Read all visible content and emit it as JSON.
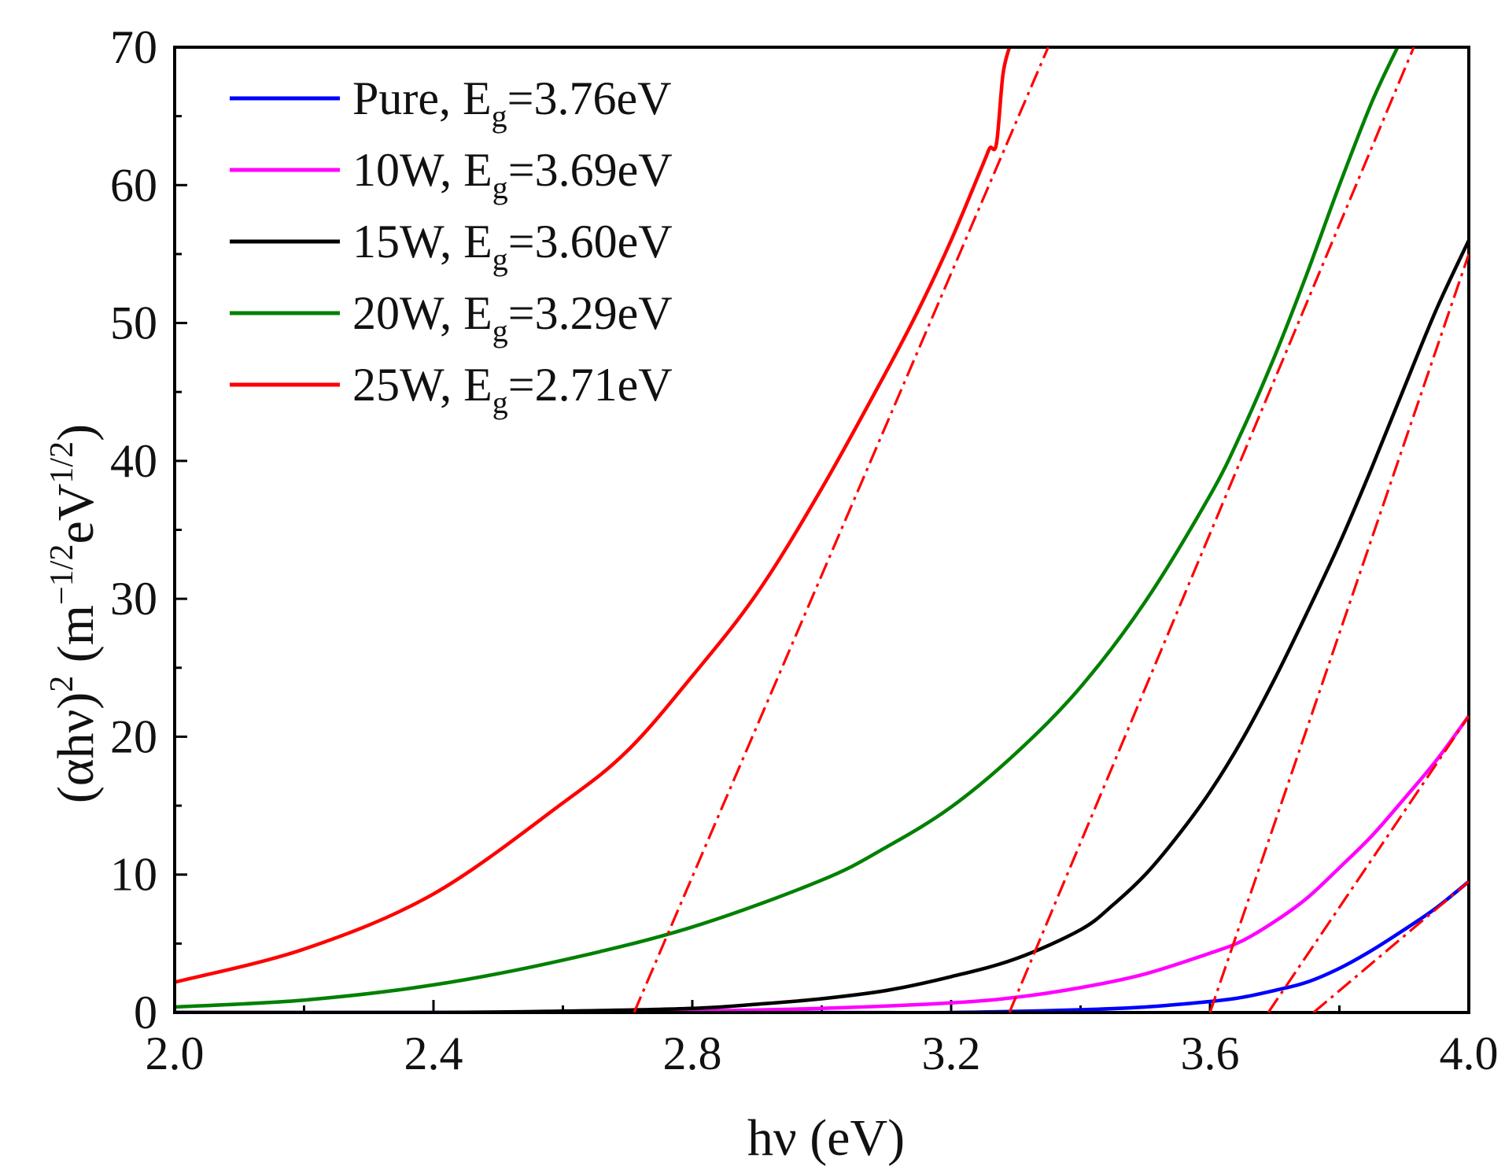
{
  "chart_data": {
    "type": "line",
    "xlabel": "hν (eV)",
    "ylabel": {
      "base": "(αhν)",
      "power": "2",
      "unit_open": " (m",
      "unit_power1": "−1/2",
      "unit_mid": "eV",
      "unit_power2": "1/2",
      "unit_close": ")"
    },
    "xlim": [
      2.0,
      4.0
    ],
    "ylim": [
      0,
      70
    ],
    "xticks": [
      "2.0",
      "2.4",
      "2.8",
      "3.2",
      "3.6",
      "4.0"
    ],
    "yticks": [
      "0",
      "10",
      "20",
      "30",
      "40",
      "50",
      "60",
      "70"
    ],
    "legend_position": "top-left",
    "series": [
      {
        "name": "Pure",
        "label_prefix": "Pure, E",
        "label_sub": "g",
        "label_suffix": "=3.76eV",
        "color": "#0000ff",
        "x": [
          2.0,
          2.5,
          3.0,
          3.2,
          3.4,
          3.5,
          3.6,
          3.65,
          3.7,
          3.75,
          3.8,
          3.85,
          3.9,
          3.95,
          4.0
        ],
        "y": [
          0,
          0,
          0,
          0,
          0.2,
          0.4,
          0.8,
          1.1,
          1.6,
          2.2,
          3.2,
          4.5,
          6.0,
          7.6,
          9.5
        ]
      },
      {
        "name": "10W",
        "label_prefix": "10W,  E",
        "label_sub": "g",
        "label_suffix": "=3.69eV",
        "color": "#ff00ff",
        "x": [
          2.0,
          2.6,
          2.8,
          3.0,
          3.2,
          3.3,
          3.4,
          3.5,
          3.6,
          3.65,
          3.7,
          3.75,
          3.8,
          3.85,
          3.9,
          3.95,
          4.0
        ],
        "y": [
          0,
          0,
          0.1,
          0.3,
          0.7,
          1.1,
          1.8,
          2.8,
          4.3,
          5.2,
          6.6,
          8.3,
          10.5,
          12.8,
          15.5,
          18.3,
          21.5
        ]
      },
      {
        "name": "15W",
        "label_prefix": "15W, E",
        "label_sub": "g",
        "label_suffix": "=3.60eV",
        "color": "#000000",
        "x": [
          2.0,
          2.4,
          2.6,
          2.8,
          2.9,
          3.0,
          3.1,
          3.2,
          3.3,
          3.4,
          3.45,
          3.5,
          3.55,
          3.6,
          3.65,
          3.7,
          3.75,
          3.8,
          3.85,
          3.9,
          3.95,
          4.0
        ],
        "y": [
          0,
          0,
          0.1,
          0.3,
          0.6,
          1.0,
          1.6,
          2.6,
          3.9,
          6.0,
          7.8,
          10.0,
          12.8,
          16.0,
          19.8,
          24.2,
          29.0,
          34.0,
          39.5,
          45.3,
          51.0,
          56.0
        ]
      },
      {
        "name": "20W",
        "label_prefix": "20W, E",
        "label_sub": "g",
        "label_suffix": "=3.29eV",
        "color": "#008000",
        "x": [
          2.0,
          2.2,
          2.4,
          2.6,
          2.8,
          3.0,
          3.1,
          3.2,
          3.3,
          3.4,
          3.5,
          3.6,
          3.65,
          3.7,
          3.75,
          3.8,
          3.85,
          3.89
        ],
        "y": [
          0.4,
          0.9,
          2.0,
          3.8,
          6.2,
          9.6,
          12.0,
          14.9,
          18.8,
          23.6,
          29.8,
          37.5,
          42.2,
          47.6,
          53.6,
          60.0,
          66.0,
          70.0
        ]
      },
      {
        "name": "25W",
        "label_prefix": "25W, E",
        "label_sub": "g",
        "label_suffix": "=2.71eV",
        "color": "#ff0000",
        "x": [
          2.0,
          2.2,
          2.4,
          2.6,
          2.7,
          2.8,
          2.9,
          3.0,
          3.1,
          3.15,
          3.2,
          3.25,
          3.26,
          3.27,
          3.28,
          3.29
        ],
        "y": [
          2.2,
          4.6,
          8.6,
          15.2,
          19.0,
          24.4,
          30.4,
          38.0,
          46.5,
          51.0,
          56.0,
          61.6,
          62.7,
          63.0,
          68.0,
          70.0
        ]
      }
    ],
    "fit_lines": {
      "color": "#ff0000",
      "style": "dash-dot",
      "lines": [
        {
          "for": "Pure",
          "x": [
            3.76,
            4.0
          ],
          "y": [
            0,
            9.5
          ]
        },
        {
          "for": "10W",
          "x": [
            3.69,
            4.0
          ],
          "y": [
            0,
            21.5
          ]
        },
        {
          "for": "15W",
          "x": [
            3.6,
            4.0
          ],
          "y": [
            0,
            55.0
          ]
        },
        {
          "for": "20W",
          "x": [
            3.29,
            3.915
          ],
          "y": [
            0,
            70.0
          ]
        },
        {
          "for": "25W",
          "x": [
            2.71,
            3.35
          ],
          "y": [
            0,
            70.0
          ]
        }
      ]
    }
  }
}
